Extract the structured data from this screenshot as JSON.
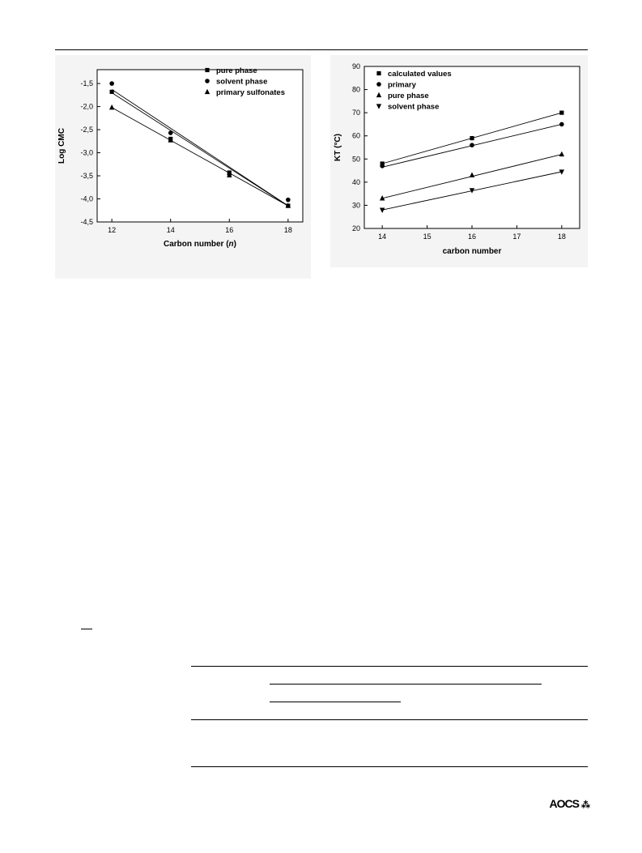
{
  "chart_data": [
    {
      "type": "scatter",
      "xlabel": "Carbon number (n)",
      "ylabel": "Log CMC",
      "xlim": [
        11.5,
        18.5
      ],
      "ylim": [
        -4.5,
        -1.2
      ],
      "xticks": [
        12,
        14,
        16,
        18
      ],
      "xtick_labels": [
        "12",
        "14",
        "16",
        "18"
      ],
      "yticks": [
        -1.5,
        -2.0,
        -2.5,
        -3.0,
        -3.5,
        -4.0,
        -4.5
      ],
      "ytick_labels": [
        "-1,5",
        "-2,0",
        "-2,5",
        "-3,0",
        "-3,5",
        "-4,0",
        "-4,5"
      ],
      "legend_position": "top-right",
      "series": [
        {
          "name": "pure phase",
          "marker": "square",
          "x": [
            12,
            14,
            16,
            18
          ],
          "y": [
            -1.68,
            -2.7,
            -3.43,
            -4.15
          ],
          "fit": [
            [
              12,
              -1.63
            ],
            [
              18,
              -4.15
            ]
          ]
        },
        {
          "name": "solvent phase",
          "marker": "circle",
          "x": [
            12,
            14,
            16,
            18
          ],
          "y": [
            -1.5,
            -2.57,
            -3.47,
            -4.02
          ],
          "fit": [
            [
              12,
              -1.7
            ],
            [
              18,
              -4.15
            ]
          ]
        },
        {
          "name": "primary sulfonates",
          "marker": "triangle-up",
          "x": [
            12,
            14,
            16,
            18
          ],
          "y": [
            -2.02,
            -2.73,
            -3.49,
            -4.15
          ],
          "fit": [
            [
              12,
              -2.02
            ],
            [
              18,
              -4.15
            ]
          ]
        }
      ]
    },
    {
      "type": "scatter",
      "xlabel": "carbon number",
      "ylabel": "KT (°C)",
      "xlim": [
        13.6,
        18.4
      ],
      "ylim": [
        20,
        90
      ],
      "xticks": [
        14,
        15,
        16,
        17,
        18
      ],
      "xtick_labels": [
        "14",
        "15",
        "16",
        "17",
        "18"
      ],
      "yticks": [
        20,
        30,
        40,
        50,
        60,
        70,
        80,
        90
      ],
      "ytick_labels": [
        "20",
        "30",
        "40",
        "50",
        "60",
        "70",
        "80",
        "90"
      ],
      "legend_position": "top-left",
      "series": [
        {
          "name": "calculated values",
          "marker": "square",
          "x": [
            14,
            16,
            18
          ],
          "y": [
            48,
            59,
            70
          ],
          "fit": [
            [
              14,
              48
            ],
            [
              18,
              70
            ]
          ]
        },
        {
          "name": "primary",
          "marker": "circle",
          "x": [
            14,
            16,
            18
          ],
          "y": [
            47,
            56,
            65
          ],
          "fit": [
            [
              14,
              46.5
            ],
            [
              18,
              65
            ]
          ]
        },
        {
          "name": "pure phase",
          "marker": "triangle-up",
          "x": [
            14,
            16,
            18
          ],
          "y": [
            33,
            43,
            52
          ],
          "fit": [
            [
              14,
              33
            ],
            [
              18,
              52
            ]
          ]
        },
        {
          "name": "solvent phase",
          "marker": "triangle-down",
          "x": [
            14,
            16,
            18
          ],
          "y": [
            28,
            36.5,
            44.5
          ],
          "fit": [
            [
              14,
              28
            ],
            [
              18,
              44.5
            ]
          ]
        }
      ]
    }
  ],
  "footer": {
    "logo": "AOCS",
    "logo_mark": "⁂"
  }
}
